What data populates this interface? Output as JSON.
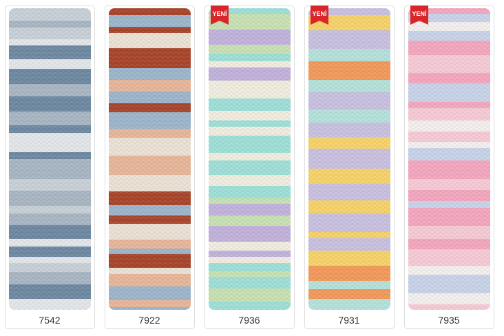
{
  "products": [
    {
      "code": "7542"
    },
    {
      "code": "7922"
    },
    {
      "code": "7936",
      "badge": "YENİ"
    },
    {
      "code": "7931",
      "badge": "YENİ"
    },
    {
      "code": "7935",
      "badge": "YENİ"
    }
  ]
}
